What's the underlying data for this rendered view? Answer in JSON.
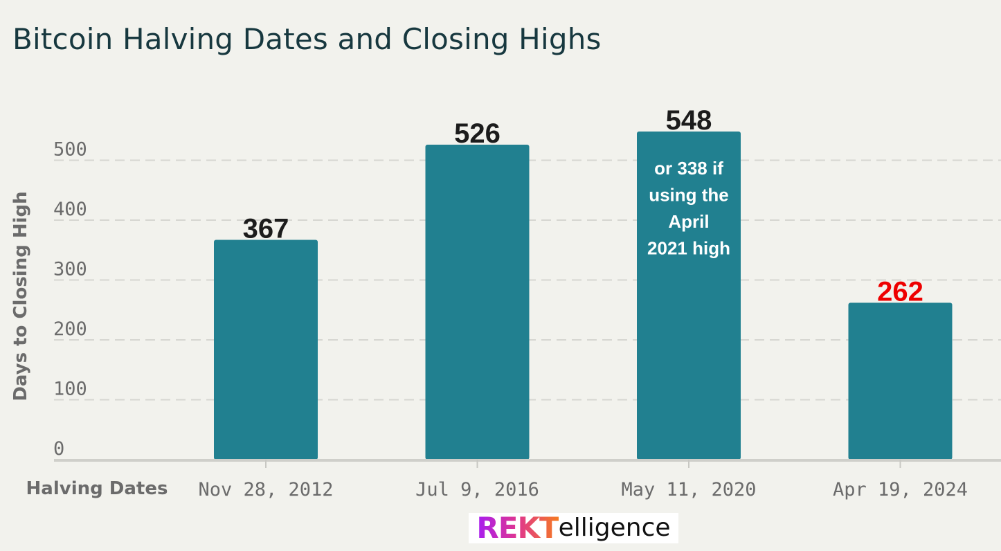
{
  "title": "Bitcoin Halving Dates and Closing Highs",
  "chart_data": {
    "type": "bar",
    "title": "Bitcoin Halving Dates and Closing Highs",
    "xlabel": "Halving Dates",
    "ylabel": "Days to Closing High",
    "categories": [
      "Nov 28, 2012",
      "Jul 9, 2016",
      "May 11, 2020",
      "Apr 19, 2024"
    ],
    "values": [
      367,
      526,
      548,
      262
    ],
    "data_labels": [
      "367",
      "526",
      "548",
      "262"
    ],
    "data_label_colors": [
      "#1c1c1c",
      "#1c1c1c",
      "#1c1c1c",
      "#ee0000"
    ],
    "annotations": [
      {
        "category": "May 11, 2020",
        "lines": [
          "or 338 if",
          "using the",
          "April",
          "2021 high"
        ]
      }
    ],
    "ylim": [
      0,
      548
    ],
    "yticks": [
      0,
      100,
      200,
      300,
      400,
      500
    ],
    "grid": true,
    "bar_color": "#218090",
    "legend": false
  },
  "logo": {
    "prefix": "REKT",
    "suffix": "elligence"
  }
}
